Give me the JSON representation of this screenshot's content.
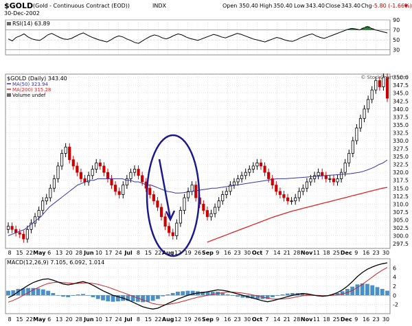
{
  "header": {
    "symbol": "$GOLD",
    "name": "(Gold - Continuous Contract (EOD))",
    "exchange": "INDX",
    "date": "30-Dec-2002",
    "open_label": "Open",
    "open": "350.40",
    "high_label": "High",
    "high": "350.40",
    "low_label": "Low",
    "low": "343.40",
    "close_label": "Close",
    "close": "343.40",
    "chg_label": "Chg",
    "chg": "-5.80 (-1.66%)",
    "watermark": "© StockCharts.com"
  },
  "colors": {
    "price_up": "#000000",
    "price_down": "#cc0000",
    "ma50": "#3333aa",
    "ma200": "#dd2222",
    "rsi_line": "#000000",
    "rsi_fill": "#2e7d32",
    "macd_line": "#000000",
    "signal_line": "#cc2222",
    "histogram": "#4a90c8",
    "ellipse": "#1a1a8c",
    "grid": "#cccccc"
  },
  "chart_data": [
    {
      "type": "line",
      "panel": "rsi",
      "legend": "RSI(14) 63.89",
      "ylim": [
        20,
        90
      ],
      "yticks": [
        30,
        50,
        70,
        90
      ],
      "series": [
        {
          "values": [
            52,
            48,
            55,
            58,
            62,
            56,
            52,
            50,
            49,
            54,
            60,
            63,
            59,
            55,
            52,
            51,
            53,
            57,
            61,
            64,
            60,
            56,
            53,
            50,
            48,
            46,
            50,
            55,
            58,
            56,
            52,
            49,
            45,
            43,
            48,
            53,
            57,
            60,
            58,
            54,
            52,
            55,
            59,
            62,
            60,
            56,
            53,
            51,
            49,
            52,
            55,
            58,
            61,
            59,
            56,
            54,
            57,
            60,
            63,
            61,
            58,
            55,
            52,
            50,
            48,
            46,
            49,
            52,
            55,
            53,
            50,
            48,
            47,
            50,
            54,
            57,
            60,
            62,
            58,
            55,
            53,
            56,
            59,
            62,
            65,
            68,
            71,
            73,
            72,
            70,
            74,
            77,
            73,
            70,
            68,
            66,
            63.89
          ]
        }
      ]
    },
    {
      "type": "candlestick",
      "panel": "price",
      "title": "$GOLD (Daily) 343.40",
      "legend": [
        "MA(50) 323.94",
        "MA(200) 315.28",
        "Volume undef"
      ],
      "ylim": [
        296,
        351
      ],
      "yticks": [
        297.5,
        300,
        302.5,
        305,
        307.5,
        310,
        312.5,
        315,
        317.5,
        320,
        322.5,
        325,
        327.5,
        330,
        332.5,
        335,
        337.5,
        340,
        342.5,
        345,
        347.5,
        350
      ],
      "closes": [
        303,
        302,
        301,
        300.5,
        299,
        302,
        304,
        306,
        308,
        311,
        312,
        315,
        318,
        322,
        326,
        328,
        324,
        322,
        320,
        318,
        317,
        319,
        321,
        323,
        322,
        320,
        318,
        316,
        314,
        313,
        316,
        318,
        320,
        321,
        319,
        317,
        315,
        313,
        311,
        309,
        306,
        303,
        301,
        300,
        304,
        308,
        312,
        314,
        316,
        312,
        310,
        308,
        306,
        307,
        309,
        311,
        313,
        314,
        316,
        317,
        318,
        319,
        320,
        321,
        322,
        323,
        322,
        320,
        318,
        316,
        314,
        313,
        312,
        311,
        311,
        312,
        314,
        315,
        317,
        318,
        319,
        320,
        319,
        318,
        318,
        317,
        318,
        320,
        323,
        326,
        330,
        334,
        337,
        340,
        343,
        346,
        349,
        347,
        350,
        343.4
      ],
      "ma50": [
        300,
        300.5,
        301,
        301.5,
        302,
        303,
        304,
        305,
        306,
        307.5,
        309,
        310,
        311,
        312,
        313,
        314,
        315,
        316,
        316.5,
        317,
        317.5,
        317.5,
        318,
        318,
        318,
        318,
        318,
        318,
        318,
        317.5,
        317.5,
        317,
        317,
        316.5,
        316,
        316,
        315.5,
        315,
        314.5,
        314,
        313.8,
        313.5,
        313.5,
        313.6,
        313.8,
        314,
        314.2,
        314.4,
        314.6,
        314.8,
        315,
        315,
        315.2,
        315.4,
        315.6,
        315.8,
        316,
        316.2,
        316.4,
        316.6,
        316.8,
        317,
        317.2,
        317.4,
        317.6,
        317.8,
        318,
        318,
        318,
        318.1,
        318.2,
        318.3,
        318.4,
        318.5,
        318.6,
        318.7,
        318.8,
        318.9,
        319,
        319.1,
        319.2,
        319.3,
        319.4,
        319.5,
        319.6,
        319.8,
        320,
        320.3,
        320.7,
        321.2,
        321.8,
        322.5,
        323,
        323.94
      ],
      "ma200_start_index": 52,
      "ma200": [
        298,
        298.6,
        299.2,
        299.8,
        300.4,
        301,
        301.6,
        302.2,
        302.8,
        303.4,
        304,
        304.6,
        305.2,
        305.8,
        306.3,
        306.8,
        307.3,
        307.8,
        308.2,
        308.6,
        309,
        309.4,
        309.8,
        310.2,
        310.6,
        311,
        311.4,
        311.8,
        312.2,
        312.6,
        313,
        313.4,
        313.8,
        314.2,
        314.6,
        315,
        315.28
      ]
    },
    {
      "type": "line",
      "panel": "macd",
      "legend": "MACD(12,26,9) 7.105, 6.092, 1.014",
      "ylim": [
        -4,
        8
      ],
      "yticks": [
        -2,
        0,
        2,
        4,
        6
      ],
      "series": [
        {
          "name": "MACD",
          "values": [
            -0.5,
            0,
            0.8,
            1.5,
            2.2,
            2.8,
            3.2,
            3.5,
            3.6,
            3.3,
            2.9,
            2.5,
            2.3,
            2.5,
            2.8,
            3.0,
            2.7,
            2.2,
            1.6,
            1.0,
            0.5,
            0.0,
            -0.3,
            -0.6,
            -1.0,
            -1.5,
            -2.0,
            -2.5,
            -2.8,
            -3.0,
            -2.8,
            -2.3,
            -1.8,
            -1.3,
            -0.8,
            -0.4,
            0.0,
            0.3,
            0.5,
            0.6,
            0.8,
            1.0,
            1.2,
            1.1,
            0.9,
            0.6,
            0.3,
            0.0,
            -0.3,
            -0.6,
            -0.9,
            -1.2,
            -1.4,
            -1.2,
            -0.9,
            -0.6,
            -0.3,
            0.0,
            0.2,
            0.4,
            0.3,
            0.1,
            -0.1,
            -0.2,
            -0.1,
            0.2,
            0.6,
            1.2,
            2.0,
            3.0,
            4.1,
            5.0,
            5.7,
            6.2,
            6.6,
            6.9,
            7.105
          ]
        },
        {
          "name": "Signal",
          "values": [
            -1.5,
            -1.1,
            -0.6,
            0.0,
            0.6,
            1.2,
            1.7,
            2.2,
            2.6,
            2.8,
            2.9,
            2.8,
            2.7,
            2.6,
            2.6,
            2.7,
            2.7,
            2.6,
            2.4,
            2.1,
            1.8,
            1.4,
            1.0,
            0.6,
            0.2,
            -0.2,
            -0.6,
            -1.0,
            -1.4,
            -1.8,
            -2.0,
            -2.1,
            -2.0,
            -1.8,
            -1.6,
            -1.3,
            -1.0,
            -0.7,
            -0.4,
            -0.2,
            0.0,
            0.2,
            0.4,
            0.6,
            0.7,
            0.7,
            0.6,
            0.5,
            0.3,
            0.1,
            -0.1,
            -0.4,
            -0.6,
            -0.8,
            -0.8,
            -0.8,
            -0.7,
            -0.5,
            -0.3,
            -0.1,
            0.0,
            0.0,
            0.0,
            -0.1,
            -0.1,
            0.0,
            0.1,
            0.3,
            0.6,
            1.1,
            1.7,
            2.4,
            3.2,
            4.0,
            4.8,
            5.5,
            6.092
          ]
        }
      ]
    }
  ],
  "x_axis_labels": [
    "8",
    "15",
    "22",
    "May",
    "6",
    "13",
    "20",
    "28",
    "Jun",
    "10",
    "17",
    "24",
    "Jul",
    "8",
    "15",
    "22",
    "Aug",
    "12",
    "19",
    "26",
    "Sep",
    "9",
    "16",
    "23",
    "30",
    "Oct",
    "7",
    "14",
    "21",
    "28",
    "Nov",
    "11",
    "18",
    "25",
    "Dec",
    "9",
    "16",
    "23",
    "30"
  ]
}
